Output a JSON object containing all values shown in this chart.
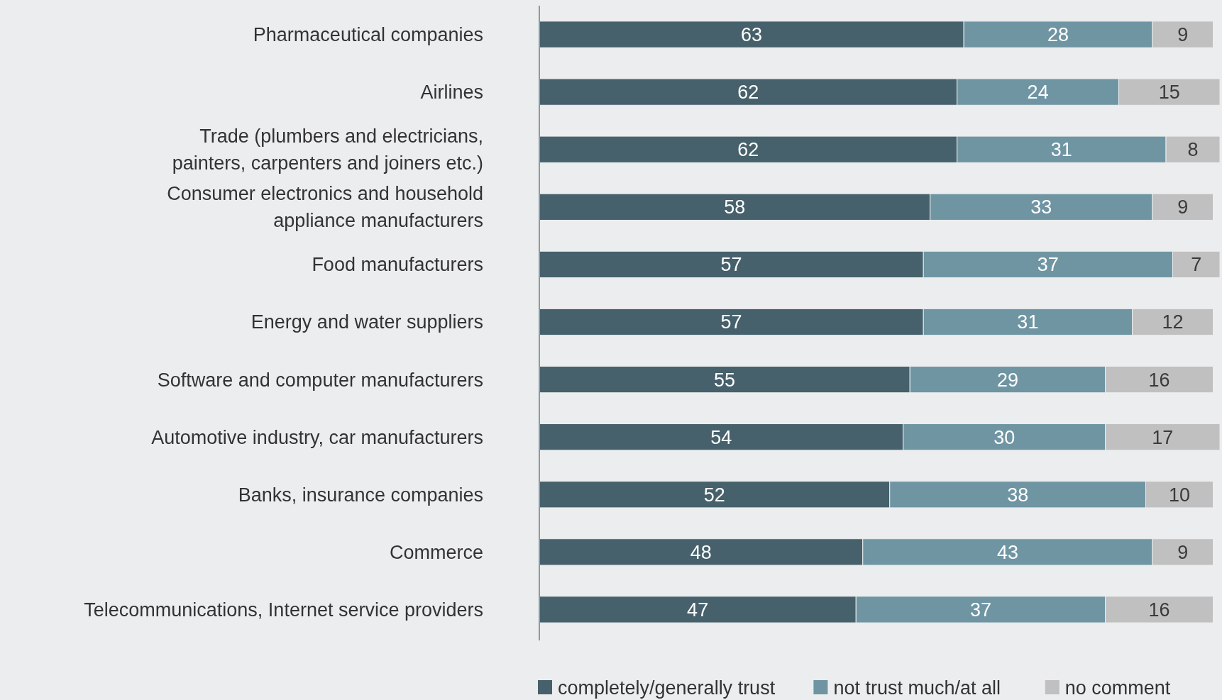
{
  "chart_data": {
    "type": "bar",
    "orientation": "horizontal",
    "stacked": true,
    "data_labels": true,
    "legend": "bottom",
    "categories": [
      "Pharmaceutical companies",
      "Airlines",
      "Trade (plumbers and electricians,\npainters, carpenters and joiners etc.)",
      "Consumer electronics and household\nappliance manufacturers",
      "Food manufacturers",
      "Energy and water suppliers",
      "Software and computer manufacturers",
      "Automotive industry, car manufacturers",
      "Banks, insurance companies",
      "Commerce",
      "Telecommunications, Internet service providers"
    ],
    "series": [
      {
        "name": "completely/generally trust",
        "color": "#46616b",
        "values": [
          63,
          62,
          62,
          58,
          57,
          57,
          55,
          54,
          52,
          48,
          47
        ]
      },
      {
        "name": "not trust much/at all",
        "color": "#6f95a3",
        "values": [
          28,
          24,
          31,
          33,
          37,
          31,
          29,
          30,
          38,
          43,
          37
        ]
      },
      {
        "name": "no comment",
        "color": "#c0c0c0",
        "values": [
          9,
          15,
          8,
          9,
          7,
          12,
          16,
          17,
          10,
          9,
          16
        ]
      }
    ]
  }
}
